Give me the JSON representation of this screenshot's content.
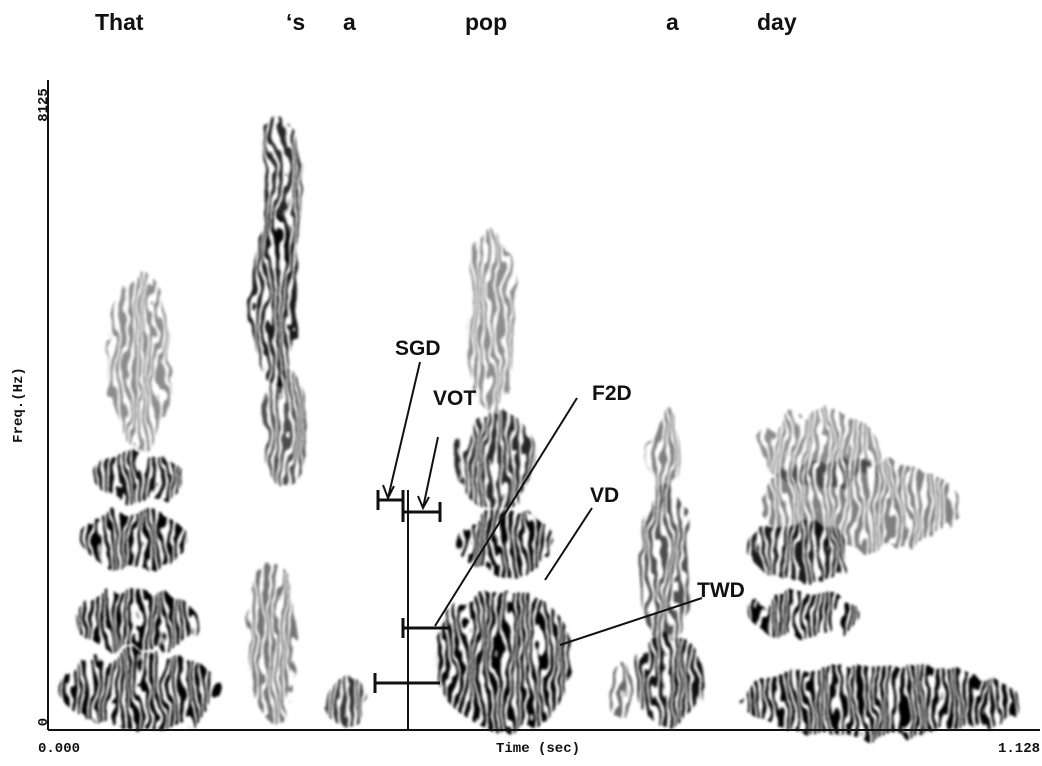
{
  "words": [
    "That",
    "‘s",
    "a",
    "pop",
    "a",
    "day"
  ],
  "annotations": {
    "sgd": "SGD",
    "vot": "VOT",
    "f2d": "F2D",
    "vd": "VD",
    "twd": "TWD"
  },
  "axes": {
    "y_label": "Freq.(Hz)",
    "y_top": "8125",
    "y_bottom": "0",
    "x_label": "Time (sec)",
    "x_left": "0.000",
    "x_right": "1.128"
  }
}
